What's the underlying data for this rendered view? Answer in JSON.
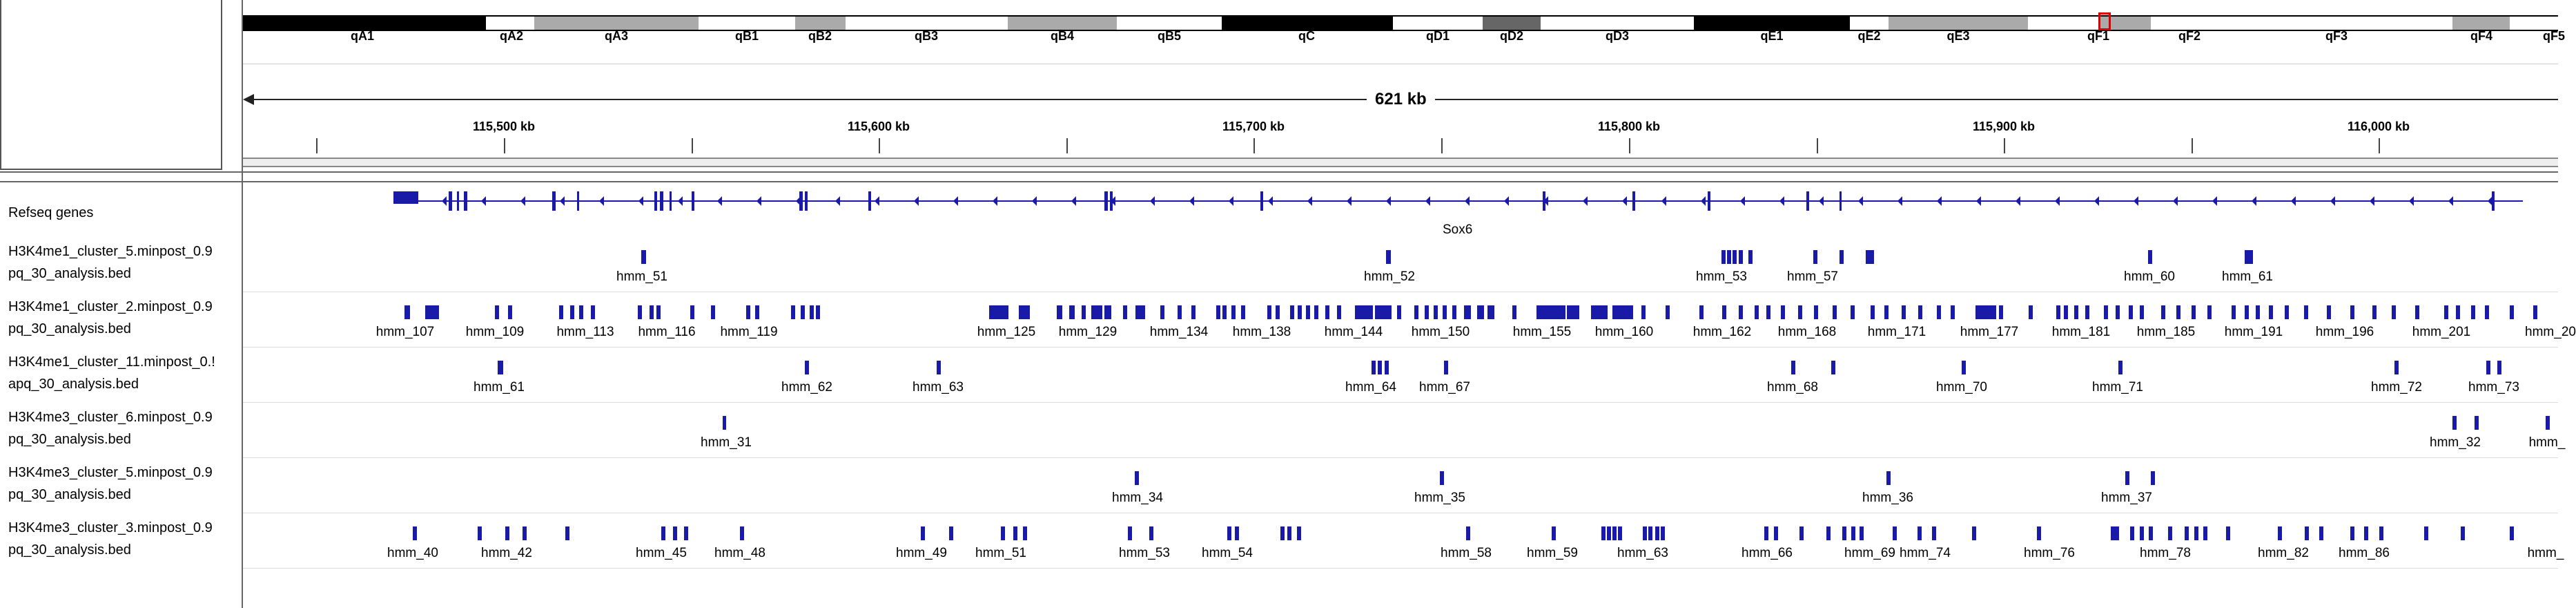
{
  "colors": {
    "feature": "#1a1aa8",
    "band_dark": "#000000",
    "band_mid": "#aaaaaa",
    "band_darkgray": "#666666",
    "band_light": "#ffffff",
    "highlight": "#dd0000"
  },
  "cytobands": [
    {
      "name": "qA1",
      "color": "dark"
    },
    {
      "name": "qA2",
      "color": "light"
    },
    {
      "name": "qA3",
      "color": "mid"
    },
    {
      "name": "qB1",
      "color": "light"
    },
    {
      "name": "qB2",
      "color": "mid"
    },
    {
      "name": "qB3",
      "color": "light"
    },
    {
      "name": "qB4",
      "color": "mid"
    },
    {
      "name": "qB5",
      "color": "light"
    },
    {
      "name": "qC",
      "color": "dark"
    },
    {
      "name": "qD1",
      "color": "light"
    },
    {
      "name": "qD2",
      "color": "darkgray"
    },
    {
      "name": "qD3",
      "color": "light"
    },
    {
      "name": "qE1",
      "color": "dark"
    },
    {
      "name": "qE2",
      "color": "light"
    },
    {
      "name": "qE3",
      "color": "mid"
    },
    {
      "name": "qF1",
      "color": "light"
    },
    {
      "name": "qF2",
      "color": "mid"
    },
    {
      "name": "qF3",
      "color": "light"
    },
    {
      "name": "qF4",
      "color": "mid"
    },
    {
      "name": "qF5",
      "color": "light"
    }
  ],
  "region_span": "621 kb",
  "ruler_labels": [
    "115,500 kb",
    "115,600 kb",
    "115,700 kb",
    "115,800 kb",
    "115,900 kb",
    "116,000 kb"
  ],
  "gene_track": {
    "label": "Refseq genes",
    "gene_name": "Sox6"
  },
  "tracks": [
    {
      "label_lines": [
        "H3K4me1_cluster_5.minpost_0.9",
        "pq_30_analysis.bed"
      ],
      "features": [
        "hmm_51",
        "hmm_52",
        "hmm_53",
        "hmm_57",
        "hmm_60",
        "hmm_61"
      ]
    },
    {
      "label_lines": [
        "H3K4me1_cluster_2.minpost_0.9",
        "pq_30_analysis.bed"
      ],
      "features": [
        "hmm_107",
        "hmm_109",
        "hmm_113",
        "hmm_116",
        "hmm_119",
        "hmm_125",
        "hmm_129",
        "hmm_134",
        "hmm_138",
        "hmm_144",
        "hmm_150",
        "hmm_155",
        "hmm_160",
        "hmm_162",
        "hmm_168",
        "hmm_171",
        "hmm_177",
        "hmm_181",
        "hmm_185",
        "hmm_191",
        "hmm_196",
        "hmm_201",
        "hmm_20"
      ]
    },
    {
      "label_lines": [
        "H3K4me1_cluster_11.minpost_0.!",
        "apq_30_analysis.bed"
      ],
      "features": [
        "hmm_61",
        "hmm_62",
        "hmm_63",
        "hmm_64",
        "hmm_67",
        "hmm_68",
        "hmm_70",
        "hmm_71",
        "hmm_72",
        "hmm_73"
      ]
    },
    {
      "label_lines": [
        "H3K4me3_cluster_6.minpost_0.9",
        "pq_30_analysis.bed"
      ],
      "features": [
        "hmm_31",
        "hmm_32",
        "hmm_"
      ]
    },
    {
      "label_lines": [
        "H3K4me3_cluster_5.minpost_0.9",
        "pq_30_analysis.bed"
      ],
      "features": [
        "hmm_34",
        "hmm_35",
        "hmm_36",
        "hmm_37"
      ]
    },
    {
      "label_lines": [
        "H3K4me3_cluster_3.minpost_0.9",
        "pq_30_analysis.bed"
      ],
      "features": [
        "hmm_40",
        "hmm_42",
        "hmm_45",
        "hmm_48",
        "hmm_49",
        "hmm_51",
        "hmm_53",
        "hmm_54",
        "hmm_58",
        "hmm_59",
        "hmm_63",
        "hmm_66",
        "hmm_69",
        "hmm_74",
        "hmm_76",
        "hmm_78",
        "hmm_82",
        "hmm_86",
        "hmm_"
      ]
    }
  ]
}
